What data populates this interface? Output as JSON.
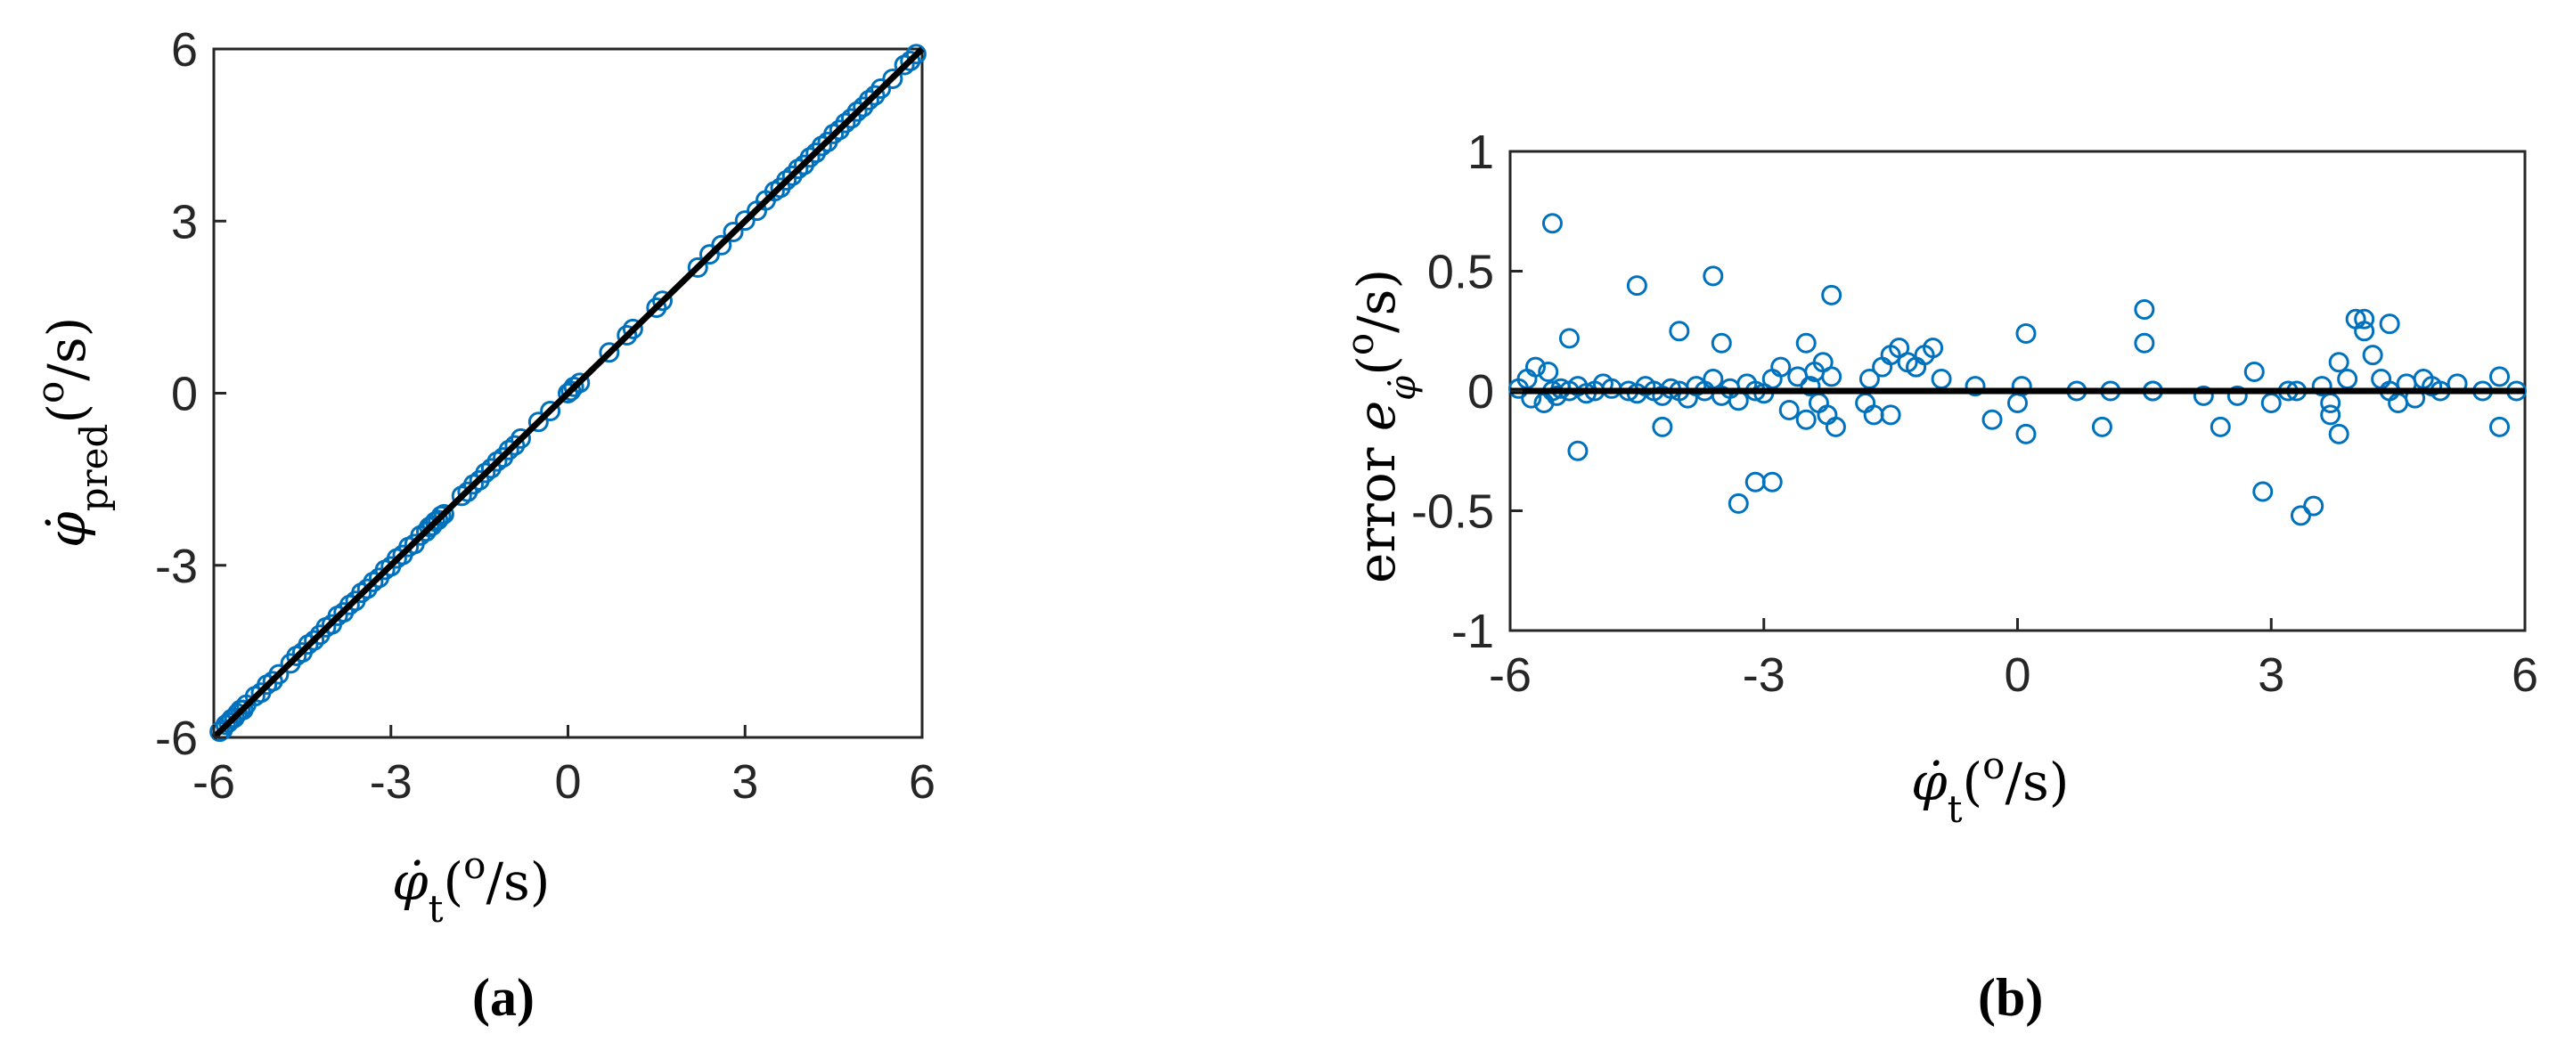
{
  "chart_data": [
    {
      "type": "scatter",
      "panel_label": "(a)",
      "xlabel": "φ̇t(o/s)",
      "ylabel": "φ̇pred(o/s)",
      "xlim": [
        -6,
        6
      ],
      "ylim": [
        -6,
        6
      ],
      "xticks": [
        "-6",
        "-3",
        "0",
        "3",
        "6"
      ],
      "yticks": [
        "-6",
        "-3",
        "0",
        "3",
        "6"
      ],
      "grid": false,
      "marker_color": "#0072BD",
      "line_color": "#000000",
      "reference_line": {
        "x": [
          -6,
          6
        ],
        "y": [
          -6,
          6
        ]
      },
      "series": [
        {
          "x": [
            -5.9,
            -5.85,
            -5.8,
            -5.75,
            -5.7,
            -5.65,
            -5.6,
            -5.55,
            -5.5,
            -5.45,
            -5.3,
            -5.2,
            -5.1,
            -5.0,
            -4.9,
            -4.7,
            -4.6,
            -4.5,
            -4.4,
            -4.3,
            -4.2,
            -4.1,
            -4.0,
            -3.9,
            -3.8,
            -3.7,
            -3.6,
            -3.5,
            -3.4,
            -3.3,
            -3.2,
            -3.1,
            -3.0,
            -2.9,
            -2.8,
            -2.7,
            -2.6,
            -2.5,
            -2.4,
            -2.35,
            -2.3,
            -2.25,
            -2.2,
            -2.15,
            -2.1,
            -1.8,
            -1.7,
            -1.6,
            -1.5,
            -1.4,
            -1.3,
            -1.2,
            -1.1,
            -1.0,
            -0.9,
            -0.8,
            -0.5,
            -0.3,
            0.0,
            0.05,
            0.1,
            0.2,
            0.7,
            1.0,
            1.1,
            1.5,
            1.6,
            2.2,
            2.4,
            2.6,
            2.8,
            3.0,
            3.2,
            3.35,
            3.5,
            3.6,
            3.7,
            3.8,
            3.9,
            4.0,
            4.1,
            4.2,
            4.3,
            4.4,
            4.5,
            4.6,
            4.7,
            4.8,
            4.9,
            5.0,
            5.1,
            5.2,
            5.3,
            5.5,
            5.7,
            5.8,
            5.9
          ],
          "y": [
            -5.9,
            -5.87,
            -5.78,
            -5.74,
            -5.68,
            -5.66,
            -5.58,
            -5.52,
            -5.52,
            -5.43,
            -5.28,
            -5.22,
            -5.08,
            -5.02,
            -4.9,
            -4.71,
            -4.58,
            -4.52,
            -4.38,
            -4.31,
            -4.21,
            -4.08,
            -4.03,
            -3.88,
            -3.82,
            -3.69,
            -3.62,
            -3.48,
            -3.41,
            -3.29,
            -3.22,
            -3.08,
            -3.02,
            -2.88,
            -2.82,
            -2.68,
            -2.63,
            -2.48,
            -2.41,
            -2.33,
            -2.31,
            -2.24,
            -2.21,
            -2.14,
            -2.11,
            -1.79,
            -1.72,
            -1.59,
            -1.52,
            -1.39,
            -1.31,
            -1.19,
            -1.12,
            -0.99,
            -0.91,
            -0.79,
            -0.5,
            -0.31,
            0.0,
            0.04,
            0.11,
            0.18,
            0.71,
            1.01,
            1.12,
            1.49,
            1.61,
            2.19,
            2.42,
            2.58,
            2.81,
            3.01,
            3.18,
            3.36,
            3.52,
            3.58,
            3.71,
            3.79,
            3.91,
            3.98,
            4.11,
            4.19,
            4.31,
            4.38,
            4.52,
            4.59,
            4.71,
            4.79,
            4.91,
            4.99,
            5.11,
            5.19,
            5.31,
            5.48,
            5.72,
            5.79,
            5.91
          ]
        }
      ]
    },
    {
      "type": "scatter",
      "panel_label": "(b)",
      "xlabel": "φ̇t(o/s)",
      "ylabel": "error eφ̇(o/s)",
      "xlim": [
        -6,
        6
      ],
      "ylim": [
        -1,
        1
      ],
      "xticks": [
        "-6",
        "-3",
        "0",
        "3",
        "6"
      ],
      "yticks": [
        "-1",
        "-0.5",
        "0",
        "0.5",
        "1"
      ],
      "grid": false,
      "marker_color": "#0072BD",
      "line_color": "#000000",
      "reference_line": {
        "x": [
          -6,
          6
        ],
        "y": [
          0,
          0
        ]
      },
      "series": [
        {
          "x": [
            -5.9,
            -5.8,
            -5.75,
            -5.7,
            -5.6,
            -5.55,
            -5.5,
            -5.45,
            -5.4,
            -5.3,
            -5.2,
            -5.1,
            -5.0,
            -4.9,
            -4.8,
            -4.6,
            -4.5,
            -4.4,
            -4.3,
            -4.2,
            -4.1,
            -4.0,
            -3.9,
            -3.8,
            -3.7,
            -3.6,
            -3.5,
            -3.4,
            -3.3,
            -3.2,
            -3.1,
            -3.0,
            -2.9,
            -2.8,
            -2.7,
            -2.6,
            -2.5,
            -2.45,
            -2.4,
            -2.35,
            -2.3,
            -2.25,
            -2.2,
            -2.15,
            -1.8,
            -1.75,
            -1.7,
            -1.6,
            -1.5,
            -1.4,
            -1.3,
            -1.2,
            -1.1,
            -1.0,
            -0.9,
            -0.5,
            -0.3,
            0.0,
            0.05,
            0.1,
            0.7,
            1.0,
            1.1,
            1.5,
            1.6,
            2.2,
            2.4,
            2.6,
            2.8,
            3.0,
            3.2,
            3.35,
            3.5,
            3.6,
            3.7,
            3.8,
            3.9,
            4.0,
            4.1,
            4.2,
            4.3,
            4.4,
            4.5,
            4.6,
            4.7,
            4.8,
            4.9,
            5.0,
            5.2,
            5.5,
            5.7,
            5.9,
            -5.5,
            -5.3,
            -4.5,
            -3.6,
            -2.2,
            -3.5,
            -4.0,
            -5.2,
            -4.2,
            -2.5,
            -3.1,
            -2.9,
            -3.3,
            1.5,
            0.1,
            2.9,
            3.3,
            4.1,
            4.4,
            3.8,
            5.7,
            -1.5,
            -1.2,
            1.6,
            3.7
          ],
          "y": [
            0.01,
            0.05,
            -0.03,
            0.1,
            -0.05,
            0.08,
            0.0,
            -0.02,
            0.01,
            0.0,
            0.02,
            -0.01,
            0.0,
            0.03,
            0.01,
            0.0,
            -0.01,
            0.02,
            0.0,
            -0.02,
            0.01,
            0.0,
            -0.03,
            0.02,
            0.0,
            0.05,
            -0.02,
            0.01,
            -0.04,
            0.03,
            0.0,
            -0.01,
            0.05,
            0.1,
            -0.08,
            0.06,
            -0.12,
            0.02,
            0.08,
            -0.05,
            0.12,
            -0.1,
            0.06,
            -0.15,
            -0.05,
            0.05,
            -0.1,
            0.1,
            0.15,
            0.18,
            0.12,
            0.1,
            0.15,
            0.18,
            0.05,
            0.02,
            -0.12,
            -0.05,
            0.02,
            -0.18,
            0.0,
            -0.15,
            0.0,
            0.2,
            0.0,
            -0.02,
            -0.15,
            -0.02,
            0.08,
            -0.05,
            0.0,
            -0.52,
            -0.48,
            0.02,
            -0.05,
            0.12,
            0.05,
            0.3,
            0.3,
            0.15,
            0.05,
            0.0,
            -0.05,
            0.03,
            -0.03,
            0.05,
            0.02,
            0.0,
            0.03,
            0.0,
            0.06,
            0.0,
            0.7,
            0.22,
            0.44,
            0.48,
            0.4,
            0.2,
            0.25,
            -0.25,
            -0.15,
            0.2,
            -0.38,
            -0.38,
            -0.47,
            0.34,
            0.24,
            -0.42,
            0.0,
            0.25,
            0.28,
            -0.18,
            -0.15,
            -0.1,
            0.1,
            0.0,
            -0.1
          ]
        }
      ]
    }
  ]
}
